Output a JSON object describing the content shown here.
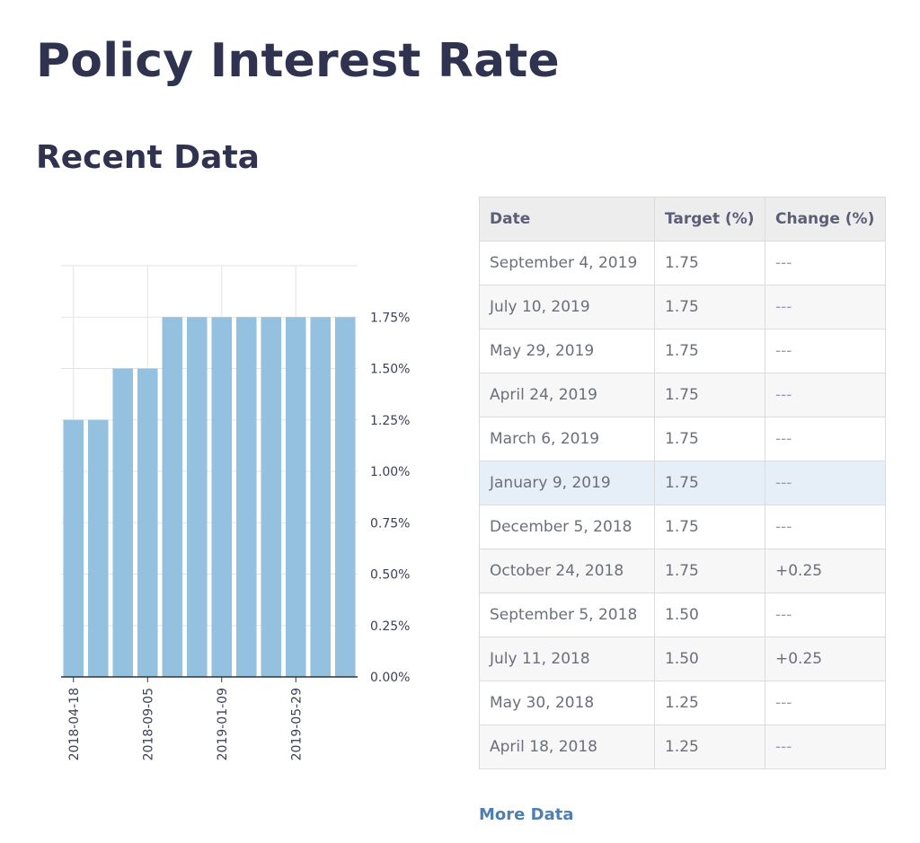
{
  "page": {
    "title": "Policy Interest Rate",
    "section_title": "Recent Data",
    "more_data_label": "More Data"
  },
  "colors": {
    "bar": "#94c1e0",
    "grid": "#e3e3e3",
    "axis": "#333333",
    "title": "#2f3350",
    "link": "#4e7fb0",
    "highlight_row": "#e6eef7"
  },
  "table": {
    "headers": [
      "Date",
      "Target (%)",
      "Change (%)"
    ],
    "rows": [
      {
        "date": "September 4, 2019",
        "target": "1.75",
        "change": "---"
      },
      {
        "date": "July 10, 2019",
        "target": "1.75",
        "change": "---"
      },
      {
        "date": "May 29, 2019",
        "target": "1.75",
        "change": "---"
      },
      {
        "date": "April 24, 2019",
        "target": "1.75",
        "change": "---"
      },
      {
        "date": "March 6, 2019",
        "target": "1.75",
        "change": "---"
      },
      {
        "date": "January 9, 2019",
        "target": "1.75",
        "change": "---",
        "highlighted": true
      },
      {
        "date": "December 5, 2018",
        "target": "1.75",
        "change": "---"
      },
      {
        "date": "October 24, 2018",
        "target": "1.75",
        "change": "+0.25"
      },
      {
        "date": "September 5, 2018",
        "target": "1.50",
        "change": "---"
      },
      {
        "date": "July 11, 2018",
        "target": "1.50",
        "change": "+0.25"
      },
      {
        "date": "May 30, 2018",
        "target": "1.25",
        "change": "---"
      },
      {
        "date": "April 18, 2018",
        "target": "1.25",
        "change": "---"
      }
    ]
  },
  "chart_data": {
    "type": "bar",
    "categories": [
      "2018-04-18",
      "2018-05-30",
      "2018-07-11",
      "2018-09-05",
      "2018-10-24",
      "2018-12-05",
      "2019-01-09",
      "2019-03-06",
      "2019-04-24",
      "2019-05-29",
      "2019-07-10",
      "2019-09-04"
    ],
    "values": [
      1.25,
      1.25,
      1.5,
      1.5,
      1.75,
      1.75,
      1.75,
      1.75,
      1.75,
      1.75,
      1.75,
      1.75
    ],
    "x_tick_labels": [
      "2018-04-18",
      "2018-09-05",
      "2019-01-09",
      "2019-05-29"
    ],
    "y_ticks": [
      0,
      0.25,
      0.5,
      0.75,
      1.0,
      1.25,
      1.5,
      1.75
    ],
    "y_tick_labels": [
      "0.00%",
      "0.25%",
      "0.50%",
      "0.75%",
      "1.00%",
      "1.25%",
      "1.50%",
      "1.75%"
    ],
    "ylim": [
      0,
      2.0
    ],
    "y_axis_side": "right",
    "grid": true,
    "title": "",
    "xlabel": "",
    "ylabel": ""
  }
}
